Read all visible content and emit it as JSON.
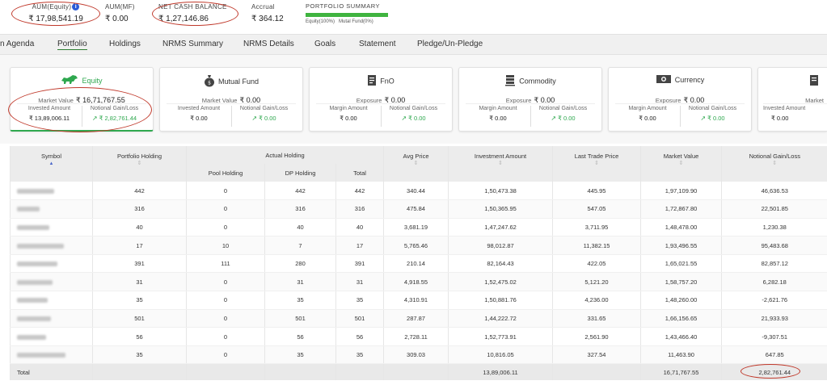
{
  "stats": {
    "aum_equity": {
      "label": "AUM(Equity)",
      "value": "₹ 17,98,541.19"
    },
    "aum_mf": {
      "label": "AUM(MF)",
      "value": "₹ 0.00"
    },
    "net_cash": {
      "label": "NET CASH BALANCE",
      "value": "₹ 1,27,146.86"
    },
    "accrual": {
      "label": "Accrual",
      "value": "₹ 364.12"
    },
    "summary": {
      "label": "PORTFOLIO SUMMARY",
      "legend_equity": "Equity(100%)",
      "legend_mf": "Mutal Fund(0%)",
      "equity_fraction": 1.0
    }
  },
  "tabs": [
    {
      "label": "n Agenda"
    },
    {
      "label": "Portfolio",
      "active": true
    },
    {
      "label": "Holdings"
    },
    {
      "label": "NRMS Summary"
    },
    {
      "label": "NRMS Details"
    },
    {
      "label": "Goals"
    },
    {
      "label": "Statement"
    },
    {
      "label": "Pledge/Un-Pledge"
    }
  ],
  "cards": [
    {
      "title": "Equity",
      "icon": "bull-icon",
      "main_label": "Market Value",
      "main_value": "₹ 16,71,767.55",
      "left_label": "Invested Amount",
      "left_value": "₹ 13,89,006.11",
      "right_label": "Notional Gain/Loss",
      "right_value": "₹ 2,82,761.44"
    },
    {
      "title": "Mutual Fund",
      "icon": "money-bag-icon",
      "main_label": "Market Value",
      "main_value": "₹ 0.00",
      "left_label": "Invested Amount",
      "left_value": "₹ 0.00",
      "right_label": "Notional Gain/Loss",
      "right_value": "₹ 0.00"
    },
    {
      "title": "FnO",
      "icon": "document-icon",
      "main_label": "Exposure",
      "main_value": "₹ 0.00",
      "left_label": "Margin Amount",
      "left_value": "₹ 0.00",
      "right_label": "Notional Gain/Loss",
      "right_value": "₹ 0.00"
    },
    {
      "title": "Commodity",
      "icon": "stack-icon",
      "main_label": "Exposure",
      "main_value": "₹ 0.00",
      "left_label": "Margin Amount",
      "left_value": "₹ 0.00",
      "right_label": "Notional Gain/Loss",
      "right_value": "₹ 0.00"
    },
    {
      "title": "Currency",
      "icon": "banknote-icon",
      "main_label": "Exposure",
      "main_value": "₹ 0.00",
      "left_label": "Margin Amount",
      "left_value": "₹ 0.00",
      "right_label": "Notional Gain/Loss",
      "right_value": "₹ 0.00"
    },
    {
      "title": "",
      "icon": "document-icon",
      "main_label": "Market",
      "main_value": "",
      "left_label": "Invested Amount",
      "left_value": "₹ 0.00",
      "right_label": "",
      "right_value": ""
    }
  ],
  "table": {
    "headers": {
      "symbol": "Symbol",
      "portfolio_holding": "Portfolio Holding",
      "actual_holding": "Actual Holding",
      "pool_holding": "Pool Holding",
      "dp_holding": "DP Holding",
      "total": "Total",
      "avg_price": "Avg Price",
      "investment_amount": "Investment Amount",
      "last_trade_price": "Last Trade Price",
      "market_value": "Market Value",
      "notional_gain_loss": "Notional Gain/Loss"
    },
    "rows": [
      {
        "portfolio": "442",
        "pool": "0",
        "dp": "442",
        "total": "442",
        "avg": "340.44",
        "invest": "1,50,473.38",
        "ltp": "445.95",
        "mv": "1,97,109.90",
        "gain": "46,636.53"
      },
      {
        "portfolio": "316",
        "pool": "0",
        "dp": "316",
        "total": "316",
        "avg": "475.84",
        "invest": "1,50,365.95",
        "ltp": "547.05",
        "mv": "1,72,867.80",
        "gain": "22,501.85"
      },
      {
        "portfolio": "40",
        "pool": "0",
        "dp": "40",
        "total": "40",
        "avg": "3,681.19",
        "invest": "1,47,247.62",
        "ltp": "3,711.95",
        "mv": "1,48,478.00",
        "gain": "1,230.38"
      },
      {
        "portfolio": "17",
        "pool": "10",
        "dp": "7",
        "total": "17",
        "avg": "5,765.46",
        "invest": "98,012.87",
        "ltp": "11,382.15",
        "mv": "1,93,496.55",
        "gain": "95,483.68"
      },
      {
        "portfolio": "391",
        "pool": "111",
        "dp": "280",
        "total": "391",
        "avg": "210.14",
        "invest": "82,164.43",
        "ltp": "422.05",
        "mv": "1,65,021.55",
        "gain": "82,857.12"
      },
      {
        "portfolio": "31",
        "pool": "0",
        "dp": "31",
        "total": "31",
        "avg": "4,918.55",
        "invest": "1,52,475.02",
        "ltp": "5,121.20",
        "mv": "1,58,757.20",
        "gain": "6,282.18"
      },
      {
        "portfolio": "35",
        "pool": "0",
        "dp": "35",
        "total": "35",
        "avg": "4,310.91",
        "invest": "1,50,881.76",
        "ltp": "4,236.00",
        "mv": "1,48,260.00",
        "gain": "-2,621.76"
      },
      {
        "portfolio": "501",
        "pool": "0",
        "dp": "501",
        "total": "501",
        "avg": "287.87",
        "invest": "1,44,222.72",
        "ltp": "331.65",
        "mv": "1,66,156.65",
        "gain": "21,933.93"
      },
      {
        "portfolio": "56",
        "pool": "0",
        "dp": "56",
        "total": "56",
        "avg": "2,728.11",
        "invest": "1,52,773.91",
        "ltp": "2,561.90",
        "mv": "1,43,466.40",
        "gain": "-9,307.51"
      },
      {
        "portfolio": "35",
        "pool": "0",
        "dp": "35",
        "total": "35",
        "avg": "309.03",
        "invest": "10,816.05",
        "ltp": "327.54",
        "mv": "11,463.90",
        "gain": "647.85"
      }
    ],
    "total": {
      "label": "Total",
      "invest": "13,89,006.11",
      "mv": "16,71,767.55",
      "gain": "2,82,761.44"
    }
  },
  "colors": {
    "accent_green": "#2fa84f",
    "annotation_red": "#c0392b",
    "info_blue": "#2a5bd7"
  }
}
